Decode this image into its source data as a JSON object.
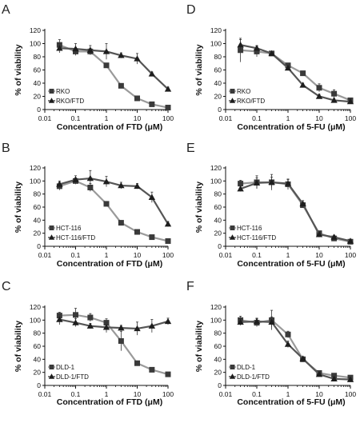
{
  "colors": {
    "series_a": "#9a9a9a",
    "series_b": "#555555",
    "axis": "#111111"
  },
  "chart_data": [
    {
      "type": "line",
      "panel": "A",
      "ylabel": "% of viability",
      "xlabel": "Concentration of FTD (μM)",
      "xscale": "log",
      "xlim": [
        0.01,
        100
      ],
      "ylim": [
        0,
        120
      ],
      "xticks": [
        "0.01",
        "0.1",
        "1",
        "10",
        "100"
      ],
      "yticks": [
        "0",
        "20",
        "40",
        "60",
        "80",
        "100",
        "120"
      ],
      "legend_position": "bottom-left",
      "series": [
        {
          "name": "RKO",
          "marker": "square",
          "x": [
            0.03,
            0.1,
            0.3,
            1,
            3,
            10,
            30,
            100
          ],
          "y": [
            98,
            88,
            88,
            67,
            36,
            17,
            8,
            3
          ],
          "err": [
            8,
            6,
            5,
            3,
            3,
            2,
            2,
            2
          ]
        },
        {
          "name": "RKO/FTD",
          "marker": "triangle",
          "x": [
            0.03,
            0.1,
            0.3,
            1,
            3,
            10,
            30,
            100
          ],
          "y": [
            93,
            92,
            90,
            88,
            82,
            77,
            54,
            31
          ],
          "err": [
            7,
            8,
            7,
            12,
            4,
            8,
            3,
            3
          ]
        }
      ]
    },
    {
      "type": "line",
      "panel": "D",
      "ylabel": "% of viability",
      "xlabel": "Concentration of 5-FU (μM)",
      "xscale": "log",
      "xlim": [
        0.01,
        100
      ],
      "ylim": [
        0,
        120
      ],
      "xticks": [
        "0.01",
        "0.1",
        "1",
        "10",
        "100"
      ],
      "yticks": [
        "0",
        "20",
        "40",
        "60",
        "80",
        "100",
        "120"
      ],
      "legend_position": "bottom-left",
      "series": [
        {
          "name": "RKO",
          "marker": "square",
          "x": [
            0.03,
            0.1,
            0.3,
            1,
            3,
            10,
            30,
            100
          ],
          "y": [
            90,
            88,
            85,
            67,
            55,
            33,
            24,
            14
          ],
          "err": [
            18,
            8,
            3,
            3,
            3,
            6,
            6,
            3
          ]
        },
        {
          "name": "RKO/FTD",
          "marker": "triangle",
          "x": [
            0.03,
            0.1,
            0.3,
            1,
            3,
            10,
            30,
            100
          ],
          "y": [
            98,
            93,
            85,
            63,
            37,
            20,
            14,
            12
          ],
          "err": [
            8,
            4,
            3,
            3,
            3,
            3,
            3,
            3
          ]
        }
      ]
    },
    {
      "type": "line",
      "panel": "B",
      "ylabel": "% of viability",
      "xlabel": "Concentration of FTD (μM)",
      "xscale": "log",
      "xlim": [
        0.01,
        100
      ],
      "ylim": [
        0,
        120
      ],
      "xticks": [
        "0.01",
        "0.1",
        "1",
        "10",
        "100"
      ],
      "yticks": [
        "0",
        "20",
        "40",
        "60",
        "80",
        "100",
        "120"
      ],
      "legend_position": "bottom-left",
      "series": [
        {
          "name": "HCT-116",
          "marker": "square",
          "x": [
            0.03,
            0.1,
            0.3,
            1,
            3,
            10,
            30,
            100
          ],
          "y": [
            92,
            100,
            90,
            65,
            36,
            22,
            14,
            8
          ],
          "err": [
            6,
            5,
            6,
            3,
            3,
            3,
            2,
            2
          ]
        },
        {
          "name": "HCT-116/FTD",
          "marker": "triangle",
          "x": [
            0.03,
            0.1,
            0.3,
            1,
            3,
            10,
            30,
            100
          ],
          "y": [
            95,
            102,
            104,
            99,
            93,
            92,
            75,
            34
          ],
          "err": [
            5,
            6,
            12,
            8,
            5,
            4,
            8,
            4
          ]
        }
      ]
    },
    {
      "type": "line",
      "panel": "E",
      "ylabel": "% of viability",
      "xlabel": "Concentration of 5-FU (μM)",
      "xscale": "log",
      "xlim": [
        0.01,
        100
      ],
      "ylim": [
        0,
        120
      ],
      "xticks": [
        "0.01",
        "0.1",
        "1",
        "10",
        "100"
      ],
      "yticks": [
        "0",
        "20",
        "40",
        "60",
        "80",
        "100",
        "120"
      ],
      "legend_position": "bottom-left",
      "series": [
        {
          "name": "HCT-116",
          "marker": "square",
          "x": [
            0.03,
            0.1,
            0.3,
            1,
            3,
            10,
            30,
            100
          ],
          "y": [
            96,
            98,
            98,
            95,
            63,
            20,
            12,
            7
          ],
          "err": [
            5,
            10,
            12,
            8,
            4,
            3,
            3,
            3
          ]
        },
        {
          "name": "HCT-116/FTD",
          "marker": "triangle",
          "x": [
            0.03,
            0.1,
            0.3,
            1,
            3,
            10,
            30,
            100
          ],
          "y": [
            88,
            97,
            98,
            96,
            65,
            18,
            14,
            8
          ],
          "err": [
            4,
            8,
            8,
            6,
            5,
            4,
            3,
            3
          ]
        }
      ]
    },
    {
      "type": "line",
      "panel": "C",
      "ylabel": "% of viability",
      "xlabel": "Concentration of FTD (μM)",
      "xscale": "log",
      "xlim": [
        0.01,
        100
      ],
      "ylim": [
        0,
        120
      ],
      "xticks": [
        "0.01",
        "0.1",
        "1",
        "10",
        "100"
      ],
      "yticks": [
        "0",
        "20",
        "40",
        "60",
        "80",
        "100",
        "120"
      ],
      "legend_position": "bottom-left",
      "series": [
        {
          "name": "DLD-1",
          "marker": "square",
          "x": [
            0.03,
            0.1,
            0.3,
            1,
            3,
            10,
            30,
            100
          ],
          "y": [
            107,
            108,
            104,
            96,
            68,
            34,
            24,
            17
          ],
          "err": [
            5,
            10,
            6,
            6,
            15,
            3,
            3,
            3
          ]
        },
        {
          "name": "DLD-1/FTD",
          "marker": "triangle",
          "x": [
            0.03,
            0.1,
            0.3,
            1,
            3,
            10,
            30,
            100
          ],
          "y": [
            101,
            96,
            91,
            89,
            88,
            87,
            91,
            98
          ],
          "err": [
            8,
            6,
            4,
            8,
            4,
            10,
            10,
            5
          ]
        }
      ]
    },
    {
      "type": "line",
      "panel": "F",
      "ylabel": "% of viability",
      "xlabel": "Concentration of 5-FU (μM)",
      "xscale": "log",
      "xlim": [
        0.01,
        100
      ],
      "ylim": [
        0,
        120
      ],
      "xticks": [
        "0.01",
        "0.1",
        "1",
        "10",
        "100"
      ],
      "yticks": [
        "0",
        "20",
        "40",
        "60",
        "80",
        "100",
        "120"
      ],
      "legend_position": "bottom-left",
      "series": [
        {
          "name": "DLD-1",
          "marker": "square",
          "x": [
            0.03,
            0.1,
            0.3,
            1,
            3,
            10,
            30,
            100
          ],
          "y": [
            100,
            96,
            100,
            78,
            40,
            19,
            15,
            12
          ],
          "err": [
            6,
            6,
            15,
            5,
            4,
            3,
            3,
            3
          ]
        },
        {
          "name": "DLD-1/FTD",
          "marker": "triangle",
          "x": [
            0.03,
            0.1,
            0.3,
            1,
            3,
            10,
            30,
            100
          ],
          "y": [
            97,
            98,
            97,
            63,
            41,
            17,
            10,
            9
          ],
          "err": [
            5,
            5,
            8,
            5,
            3,
            3,
            2,
            2
          ]
        }
      ]
    }
  ]
}
